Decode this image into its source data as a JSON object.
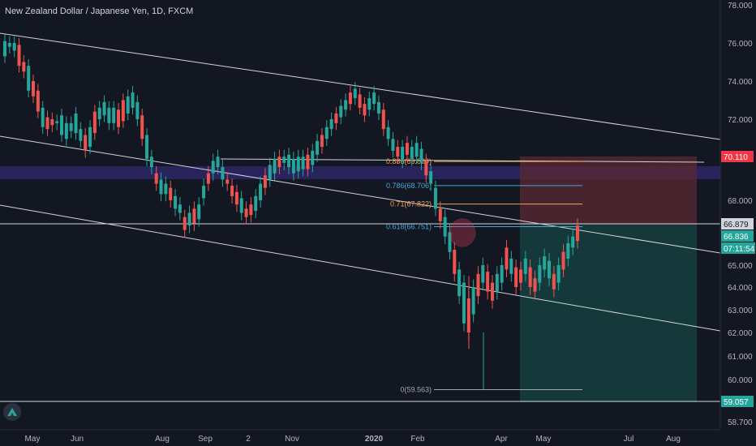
{
  "chart_data": {
    "type": "candlestick",
    "title": "New Zealand Dollar / Japanese Yen, 1D, FXCM",
    "y_axis": {
      "ylim": [
        58.2,
        78.2
      ],
      "ticks": [
        "78.000",
        "76.000",
        "74.000",
        "72.000",
        "68.000",
        "65.000",
        "64.000",
        "63.000",
        "62.000",
        "61.000",
        "60.000",
        "58.700"
      ]
    },
    "x_axis": {
      "ticks": [
        "May",
        "Jun",
        "Aug",
        "Sep",
        "2",
        "Nov",
        "2020",
        "Feb",
        "Apr",
        "May",
        "Jul",
        "Aug"
      ]
    },
    "price_tags": [
      {
        "label": "70.110",
        "value": 70.11,
        "color": "#f23645"
      },
      {
        "label": "66.879",
        "value": 66.879,
        "color": "#d1d4dc"
      },
      {
        "label": "66.836",
        "value": 66.836,
        "color": "#26a69a"
      },
      {
        "label": "07:11:54",
        "value": 66.2,
        "color": "#26a69a"
      },
      {
        "label": "59.057",
        "value": 59.057,
        "color": "#26a69a"
      }
    ],
    "fib_levels": [
      {
        "label": "0.886(69.869)",
        "value": 69.87,
        "color": "#f5a05a"
      },
      {
        "label": "0.786(68.706)",
        "value": 68.706,
        "color": "#4ca3d3"
      },
      {
        "label": "0.71(67.822)",
        "value": 67.822,
        "color": "#f5a05a"
      },
      {
        "label": "0.618(66.751)",
        "value": 66.751,
        "color": "#4ca3d3"
      },
      {
        "label": "0(59.563)",
        "value": 59.563,
        "color": "#a0a4ab"
      }
    ],
    "candles_hint": "path-based close series from May (2019) to late May (2020)",
    "close_path": [
      [
        75.3,
        76.1
      ],
      [
        75.8,
        76.0
      ],
      [
        75.6,
        76.0
      ],
      [
        74.8,
        75.9
      ],
      [
        74.5,
        75.0
      ],
      [
        73.5,
        74.8
      ],
      [
        73.2,
        74.0
      ],
      [
        72.4,
        73.5
      ],
      [
        71.6,
        72.6
      ],
      [
        71.5,
        72.1
      ],
      [
        71.7,
        72.0
      ],
      [
        71.8,
        71.9
      ],
      [
        71.2,
        72.2
      ],
      [
        71.0,
        71.8
      ],
      [
        71.4,
        71.8
      ],
      [
        71.3,
        72.3
      ],
      [
        70.9,
        71.5
      ],
      [
        70.4,
        71.2
      ],
      [
        70.6,
        71.6
      ],
      [
        71.3,
        72.4
      ],
      [
        72.0,
        72.6
      ],
      [
        72.2,
        72.9
      ],
      [
        71.8,
        72.6
      ],
      [
        71.8,
        72.6
      ],
      [
        71.6,
        72.5
      ],
      [
        71.9,
        73.0
      ],
      [
        72.3,
        73.2
      ],
      [
        72.6,
        73.4
      ],
      [
        72.0,
        72.9
      ],
      [
        71.0,
        72.2
      ],
      [
        70.0,
        71.2
      ],
      [
        69.6,
        70.1
      ],
      [
        68.8,
        69.3
      ],
      [
        68.3,
        69.0
      ],
      [
        68.3,
        68.8
      ],
      [
        68.0,
        68.6
      ],
      [
        67.6,
        68.2
      ],
      [
        67.4,
        67.8
      ],
      [
        66.6,
        67.2
      ],
      [
        66.8,
        67.4
      ],
      [
        66.9,
        67.6
      ],
      [
        67.1,
        67.8
      ],
      [
        68.1,
        68.7
      ],
      [
        68.8,
        69.3
      ],
      [
        69.3,
        69.9
      ],
      [
        69.6,
        70.1
      ],
      [
        69.0,
        69.6
      ],
      [
        68.8,
        69.0
      ],
      [
        68.2,
        68.7
      ],
      [
        67.8,
        68.4
      ],
      [
        67.4,
        68.1
      ],
      [
        67.2,
        67.6
      ],
      [
        67.3,
        67.8
      ],
      [
        67.5,
        68.2
      ],
      [
        68.0,
        68.8
      ],
      [
        68.6,
        69.2
      ],
      [
        69.0,
        69.7
      ],
      [
        69.3,
        70.0
      ],
      [
        69.6,
        70.1
      ],
      [
        69.8,
        70.1
      ],
      [
        69.6,
        70.2
      ],
      [
        69.3,
        70.0
      ],
      [
        69.4,
        70.1
      ],
      [
        69.5,
        70.1
      ],
      [
        69.5,
        70.2
      ],
      [
        69.7,
        70.4
      ],
      [
        70.2,
        70.9
      ],
      [
        70.6,
        71.2
      ],
      [
        71.0,
        71.6
      ],
      [
        71.5,
        72.0
      ],
      [
        71.8,
        72.3
      ],
      [
        72.1,
        72.7
      ],
      [
        72.5,
        73.0
      ],
      [
        72.8,
        73.4
      ],
      [
        73.1,
        73.6
      ],
      [
        72.6,
        73.3
      ],
      [
        72.2,
        72.8
      ],
      [
        72.5,
        73.1
      ],
      [
        72.8,
        73.4
      ],
      [
        72.3,
        72.9
      ],
      [
        71.5,
        72.5
      ],
      [
        71.0,
        71.6
      ],
      [
        70.4,
        71.0
      ],
      [
        70.1,
        70.6
      ],
      [
        69.9,
        70.6
      ],
      [
        70.2,
        70.8
      ],
      [
        70.0,
        70.6
      ],
      [
        70.1,
        70.8
      ],
      [
        69.8,
        70.5
      ],
      [
        69.2,
        69.9
      ],
      [
        68.8,
        69.4
      ],
      [
        67.6,
        68.6
      ],
      [
        67.0,
        67.6
      ],
      [
        66.3,
        67.2
      ],
      [
        65.6,
        66.5
      ],
      [
        64.6,
        65.7
      ],
      [
        63.6,
        64.8
      ],
      [
        62.4,
        64.2
      ],
      [
        62.0,
        63.5
      ],
      [
        62.8,
        64.0
      ],
      [
        63.6,
        64.6
      ],
      [
        64.2,
        65.0
      ],
      [
        63.8,
        64.7
      ],
      [
        63.4,
        64.2
      ],
      [
        63.8,
        64.6
      ],
      [
        64.2,
        65.0
      ],
      [
        64.8,
        65.8
      ],
      [
        64.6,
        65.3
      ],
      [
        64.0,
        64.9
      ],
      [
        64.2,
        64.8
      ],
      [
        64.6,
        65.3
      ],
      [
        64.0,
        64.9
      ],
      [
        63.8,
        64.4
      ],
      [
        64.2,
        65.0
      ],
      [
        64.8,
        65.4
      ],
      [
        64.4,
        65.2
      ],
      [
        63.9,
        64.6
      ],
      [
        64.2,
        65.0
      ],
      [
        64.8,
        65.6
      ],
      [
        65.3,
        66.0
      ],
      [
        65.8,
        66.3
      ],
      [
        66.1,
        66.8
      ]
    ]
  },
  "logo": {
    "icon": "tradingview-logo-icon"
  }
}
